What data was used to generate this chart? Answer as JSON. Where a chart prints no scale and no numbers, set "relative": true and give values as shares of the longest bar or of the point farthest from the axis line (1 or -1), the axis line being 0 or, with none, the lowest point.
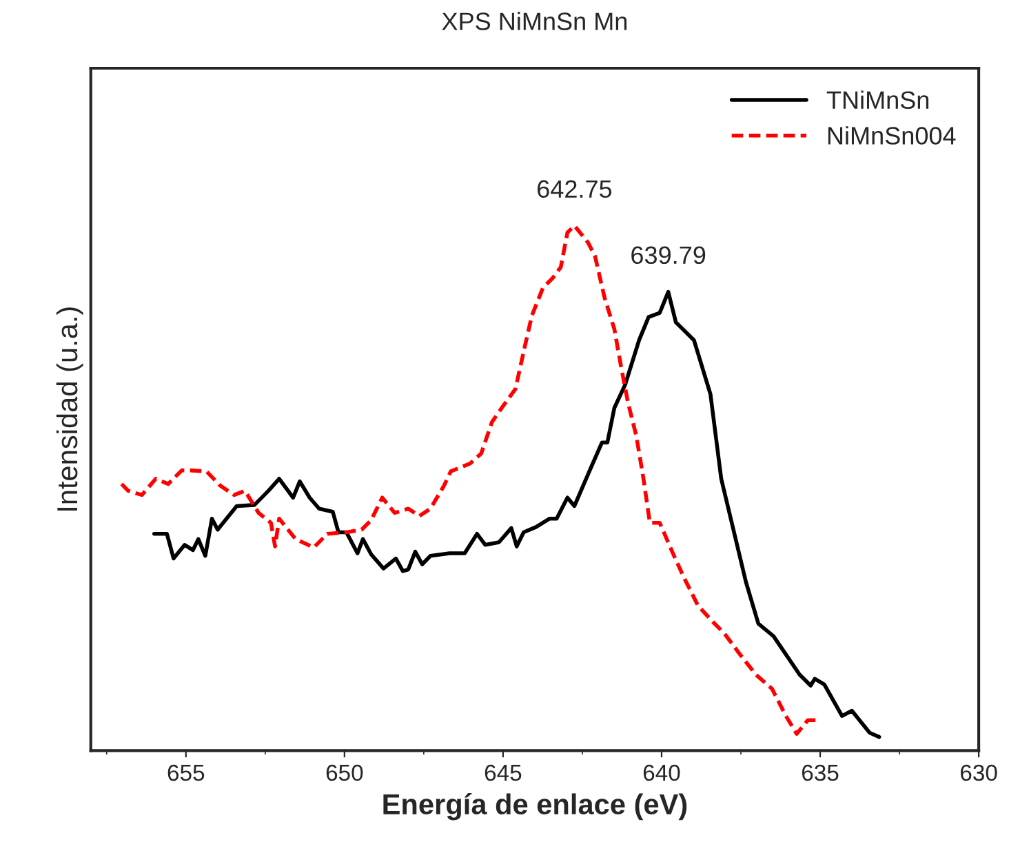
{
  "chart_data": {
    "type": "line",
    "title": "XPS NiMnSn Mn",
    "xlabel": "Energía de enlace (eV)",
    "ylabel": "Intensidad (u.a.)",
    "relative": true,
    "xlim": [
      658,
      630
    ],
    "xticks": [
      655,
      650,
      645,
      640,
      635,
      630
    ],
    "legend": "top right",
    "grid": false,
    "annotations": [
      {
        "text": "642.75",
        "x": 642.75,
        "y": 1.0
      },
      {
        "text": "639.79",
        "x": 639.79,
        "y": 0.874
      }
    ],
    "series": [
      {
        "name": "TNiMnSn",
        "color": "#000000",
        "line_style": "solid",
        "x": [
          656.0,
          655.6,
          655.39,
          655.04,
          654.78,
          654.61,
          654.39,
          654.18,
          654.0,
          653.4,
          652.84,
          652.4,
          652.06,
          651.62,
          651.41,
          651.1,
          650.8,
          650.37,
          650.19,
          649.94,
          649.59,
          649.42,
          649.16,
          648.77,
          648.38,
          648.16,
          647.99,
          647.77,
          647.55,
          647.29,
          646.69,
          646.21,
          645.82,
          645.56,
          645.13,
          644.74,
          644.57,
          644.35,
          643.96,
          643.53,
          643.31,
          642.97,
          642.75,
          642.23,
          641.88,
          641.71,
          641.49,
          641.15,
          640.71,
          640.41,
          640.06,
          639.79,
          639.55,
          638.98,
          638.46,
          638.12,
          637.34,
          636.95,
          636.47,
          635.65,
          635.3,
          635.17,
          634.87,
          634.31,
          634.0,
          633.44,
          633.14
        ],
        "values": [
          0.413,
          0.413,
          0.366,
          0.392,
          0.382,
          0.403,
          0.371,
          0.442,
          0.421,
          0.466,
          0.468,
          0.495,
          0.518,
          0.482,
          0.513,
          0.482,
          0.461,
          0.455,
          0.416,
          0.416,
          0.376,
          0.403,
          0.374,
          0.347,
          0.366,
          0.342,
          0.345,
          0.379,
          0.355,
          0.371,
          0.376,
          0.376,
          0.413,
          0.392,
          0.397,
          0.424,
          0.389,
          0.416,
          0.426,
          0.442,
          0.442,
          0.482,
          0.466,
          0.539,
          0.587,
          0.587,
          0.653,
          0.697,
          0.782,
          0.826,
          0.834,
          0.874,
          0.816,
          0.782,
          0.679,
          0.518,
          0.321,
          0.242,
          0.218,
          0.145,
          0.124,
          0.137,
          0.126,
          0.066,
          0.076,
          0.034,
          0.026
        ]
      },
      {
        "name": "NiMnSn004",
        "color": "#ff0000",
        "line_style": "dashed",
        "x": [
          657.03,
          656.82,
          656.39,
          655.95,
          655.56,
          655.13,
          654.87,
          654.35,
          653.92,
          653.48,
          653.14,
          652.71,
          652.32,
          652.19,
          652.06,
          651.54,
          650.97,
          650.54,
          649.94,
          649.46,
          649.16,
          648.81,
          648.42,
          647.99,
          647.64,
          647.29,
          646.86,
          646.65,
          646.04,
          645.69,
          645.35,
          645.04,
          644.61,
          644.31,
          644.09,
          643.74,
          643.44,
          643.18,
          642.97,
          642.75,
          642.32,
          642.1,
          641.8,
          641.49,
          641.28,
          641.06,
          640.8,
          640.58,
          640.37,
          640.06,
          639.63,
          639.29,
          638.85,
          638.33,
          638.03,
          637.6,
          637.03,
          636.52,
          636.08,
          635.74,
          635.39,
          635.09
        ],
        "values": [
          0.508,
          0.495,
          0.487,
          0.518,
          0.508,
          0.534,
          0.534,
          0.532,
          0.505,
          0.487,
          0.495,
          0.453,
          0.434,
          0.389,
          0.442,
          0.403,
          0.387,
          0.413,
          0.416,
          0.421,
          0.439,
          0.482,
          0.453,
          0.461,
          0.447,
          0.461,
          0.505,
          0.532,
          0.547,
          0.566,
          0.626,
          0.653,
          0.689,
          0.771,
          0.829,
          0.882,
          0.9,
          0.921,
          0.987,
          1.0,
          0.968,
          0.942,
          0.863,
          0.803,
          0.732,
          0.663,
          0.6,
          0.521,
          0.434,
          0.434,
          0.374,
          0.329,
          0.276,
          0.242,
          0.224,
          0.189,
          0.145,
          0.118,
          0.066,
          0.032,
          0.058,
          0.058
        ]
      }
    ]
  }
}
